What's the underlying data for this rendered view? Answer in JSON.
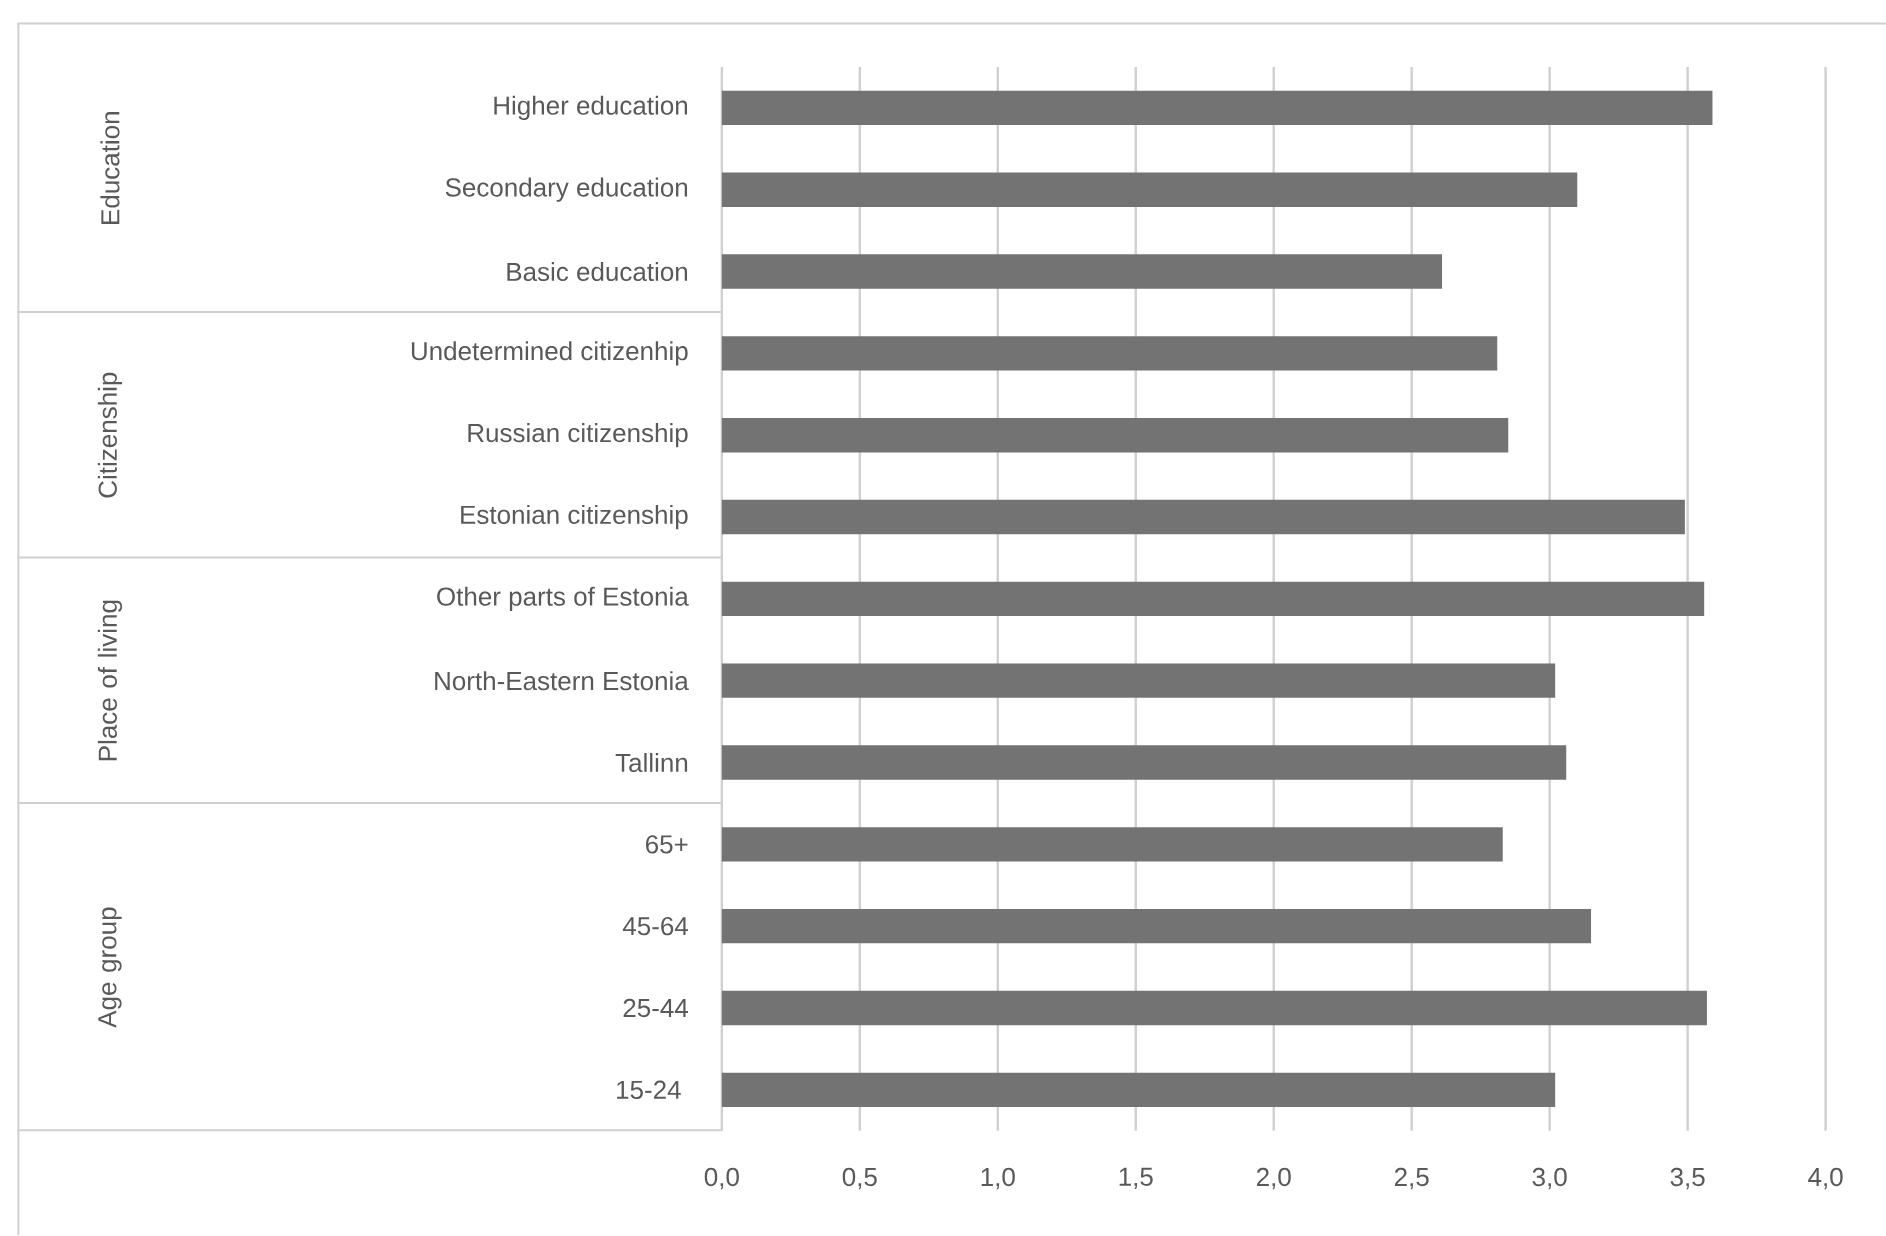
{
  "chart_data": {
    "type": "bar",
    "orientation": "horizontal",
    "categories": [
      "Higher education",
      "Secondary education",
      "Basic education",
      "Undetermined citizenhip",
      "Russian citizenship",
      "Estonian citizenship",
      "Other parts of Estonia",
      "North-Eastern Estonia",
      "Tallinn",
      "65+",
      "45-64",
      "25-44",
      "15-24 "
    ],
    "values": [
      3.59,
      3.1,
      2.61,
      2.81,
      2.85,
      3.49,
      3.56,
      3.02,
      3.06,
      2.83,
      3.15,
      3.57,
      3.02
    ],
    "color": "#737373",
    "xlim": [
      0,
      4
    ],
    "xticks": [
      {
        "value": 0,
        "label": "0,0"
      },
      {
        "value": 0.5,
        "label": "0,5"
      },
      {
        "value": 1,
        "label": "1,0"
      },
      {
        "value": 1.5,
        "label": "1,5"
      },
      {
        "value": 2,
        "label": "2,0"
      },
      {
        "value": 2.5,
        "label": "2,5"
      },
      {
        "value": 3,
        "label": "3,0"
      },
      {
        "value": 3.5,
        "label": "3,5"
      },
      {
        "value": 4,
        "label": "4,0"
      }
    ],
    "grid": "x",
    "annotations": [
      "Education",
      "Citizenship",
      "Place of living",
      "Age group"
    ]
  }
}
